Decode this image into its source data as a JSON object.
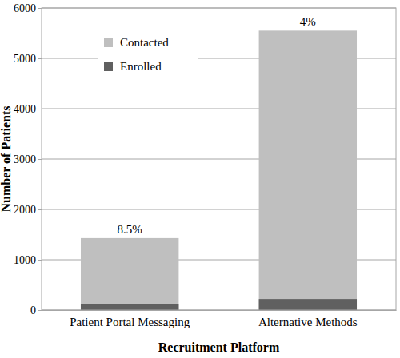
{
  "chart_data": {
    "type": "bar",
    "x_label": "Recruitment Platform",
    "y_label": "Number of Patients",
    "categories": [
      "Patient Portal Messaging",
      "Alternative Methods"
    ],
    "series": [
      {
        "name": "Contacted",
        "color": "#bfbfbf",
        "values": [
          1430,
          5550
        ]
      },
      {
        "name": "Enrolled",
        "color": "#606060",
        "values": [
          122,
          220
        ]
      }
    ],
    "annotations": [
      "8.5%",
      "4%"
    ],
    "stacked": false,
    "ylim": [
      0,
      6000
    ],
    "yticks": [
      0,
      1000,
      2000,
      3000,
      4000,
      5000,
      6000
    ],
    "grid": true,
    "legend": "top-left"
  }
}
